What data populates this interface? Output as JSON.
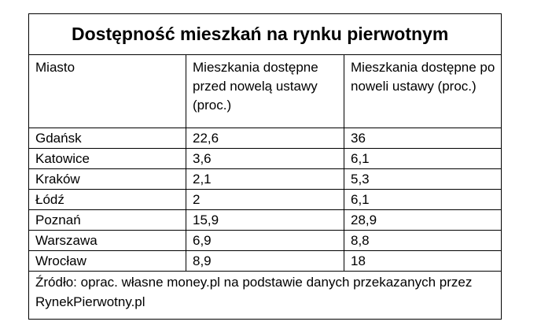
{
  "title": "Dostępność mieszkań na rynku pierwotnym",
  "headers": [
    "Miasto",
    "Mieszkania dostępne przed nowelą ustawy (proc.)",
    "Mieszkania dostępne po noweli ustawy (proc.)"
  ],
  "rows": [
    [
      "Gdańsk",
      "22,6",
      "36"
    ],
    [
      "Katowice",
      "3,6",
      "6,1"
    ],
    [
      "Kraków",
      "2,1",
      "5,3"
    ],
    [
      "Łódź",
      "2",
      "6,1"
    ],
    [
      "Poznań",
      "15,9",
      "28,9"
    ],
    [
      "Warszawa",
      "6,9",
      "8,8"
    ],
    [
      "Wrocław",
      "8,9",
      "18"
    ]
  ],
  "source": "Źródło: oprac. własne money.pl na podstawie danych przekazanych przez RynekPierwotny.pl"
}
